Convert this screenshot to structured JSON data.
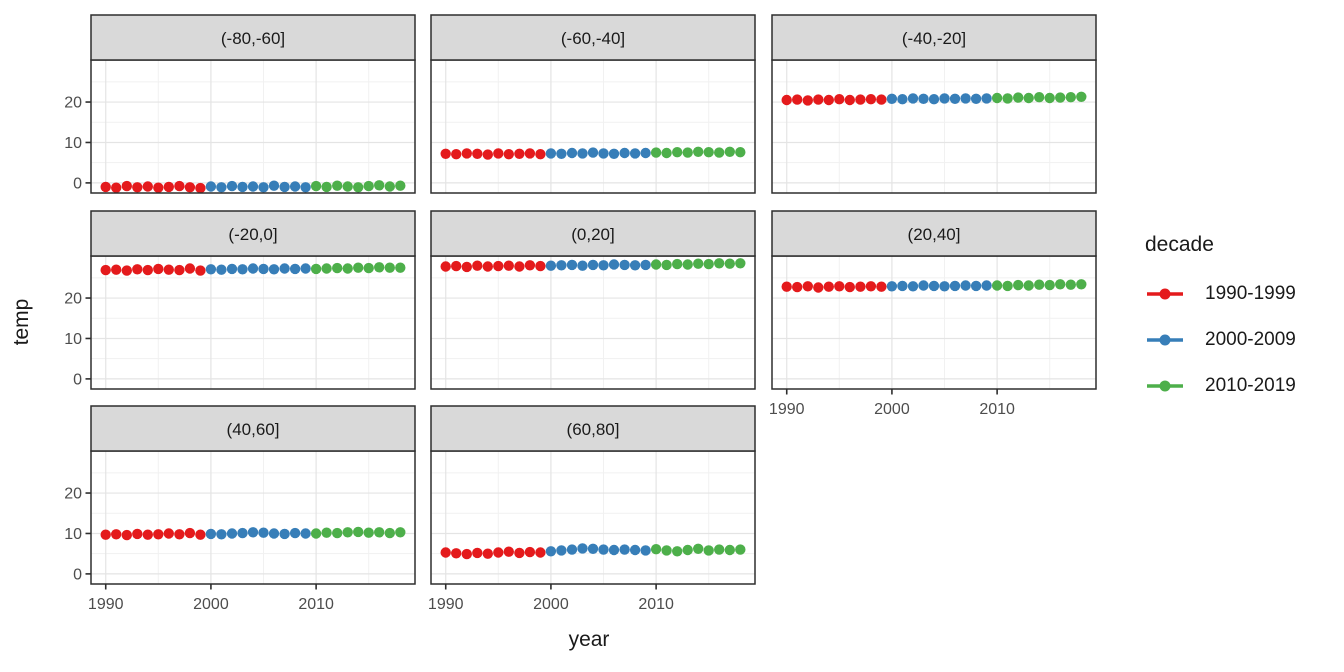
{
  "figure": {
    "x_axis_title": "year",
    "y_axis_title": "temp",
    "legend": {
      "title": "decade",
      "entries": [
        {
          "label": "1990-1999",
          "color": "#e41a1c"
        },
        {
          "label": "2000-2009",
          "color": "#377eb8"
        },
        {
          "label": "2010-2019",
          "color": "#4daf4a"
        }
      ]
    }
  },
  "colors": {
    "decade_1990_1999": "#e41a1c",
    "decade_2000_2009": "#377eb8",
    "decade_2010_2019": "#4daf4a",
    "strip_background": "#d9d9d9",
    "panel_background": "#ffffff",
    "panel_border": "#2e2e2e",
    "grid_major": "#e4e4e4",
    "grid_minor": "#f1f1f1",
    "axis_text": "#4d4d4d",
    "strip_text": "#1a1a1a"
  },
  "chart_data": {
    "type": "scatter",
    "title": "",
    "xlabel": "year",
    "ylabel": "temp",
    "facet_variable": "latitude band",
    "facet_layout": "facet_wrap, 3 columns, 8 panels",
    "legend_title": "decade",
    "legend_position": "right",
    "grid": "major and minor gridlines, light gray on white, dark panel border, gray strip headers",
    "x_ticks": [
      1990,
      2000,
      2010
    ],
    "x_minor_ticks": [
      1995,
      2005,
      2015
    ],
    "y_ticks": [
      0,
      10,
      20
    ],
    "y_minor_ticks": [
      5,
      15,
      25
    ],
    "x_range": [
      1988.6,
      2019.4
    ],
    "y_range": [
      -2.5,
      30.4
    ],
    "years": [
      1990,
      1991,
      1992,
      1993,
      1994,
      1995,
      1996,
      1997,
      1998,
      1999,
      2000,
      2001,
      2002,
      2003,
      2004,
      2005,
      2006,
      2007,
      2008,
      2009,
      2010,
      2011,
      2012,
      2013,
      2014,
      2015,
      2016,
      2017,
      2018
    ],
    "decades": [
      {
        "name": "1990-1999",
        "start": 1990,
        "end": 1999,
        "color": "#e41a1c"
      },
      {
        "name": "2000-2009",
        "start": 2000,
        "end": 2009,
        "color": "#377eb8"
      },
      {
        "name": "2010-2019",
        "start": 2010,
        "end": 2019,
        "color": "#4daf4a"
      }
    ],
    "facets": [
      {
        "label": "(-80,-60]",
        "temps": [
          -1.0,
          -1.2,
          -0.8,
          -1.1,
          -0.9,
          -1.2,
          -1.0,
          -0.8,
          -1.1,
          -1.3,
          -0.9,
          -1.1,
          -0.8,
          -1.0,
          -0.9,
          -1.1,
          -0.7,
          -1.0,
          -0.9,
          -1.1,
          -0.8,
          -1.0,
          -0.7,
          -0.9,
          -1.1,
          -0.8,
          -0.6,
          -0.9,
          -0.7
        ]
      },
      {
        "label": "(-60,-40]",
        "temps": [
          7.2,
          7.1,
          7.3,
          7.2,
          7.0,
          7.3,
          7.1,
          7.2,
          7.3,
          7.1,
          7.3,
          7.2,
          7.4,
          7.3,
          7.5,
          7.3,
          7.2,
          7.4,
          7.3,
          7.4,
          7.5,
          7.4,
          7.6,
          7.5,
          7.7,
          7.6,
          7.5,
          7.7,
          7.6
        ]
      },
      {
        "label": "(-40,-20]",
        "temps": [
          20.5,
          20.6,
          20.4,
          20.6,
          20.5,
          20.7,
          20.5,
          20.6,
          20.7,
          20.6,
          20.8,
          20.7,
          20.9,
          20.8,
          20.7,
          20.9,
          20.8,
          20.9,
          20.8,
          20.9,
          21.0,
          20.9,
          21.1,
          21.0,
          21.2,
          21.0,
          21.1,
          21.2,
          21.3
        ]
      },
      {
        "label": "(-20,0]",
        "temps": [
          26.9,
          27.0,
          26.8,
          27.1,
          26.9,
          27.2,
          27.0,
          26.9,
          27.3,
          26.8,
          27.1,
          27.0,
          27.2,
          27.1,
          27.3,
          27.2,
          27.1,
          27.3,
          27.2,
          27.3,
          27.2,
          27.3,
          27.4,
          27.3,
          27.5,
          27.4,
          27.6,
          27.5,
          27.5
        ]
      },
      {
        "label": "(0,20]",
        "temps": [
          27.8,
          27.9,
          27.7,
          28.0,
          27.8,
          27.9,
          28.0,
          27.8,
          28.1,
          27.9,
          28.0,
          28.1,
          28.2,
          28.0,
          28.2,
          28.1,
          28.3,
          28.2,
          28.1,
          28.2,
          28.3,
          28.2,
          28.4,
          28.3,
          28.5,
          28.4,
          28.6,
          28.5,
          28.6
        ]
      },
      {
        "label": "(20,40]",
        "temps": [
          22.8,
          22.7,
          22.9,
          22.6,
          22.8,
          22.9,
          22.7,
          22.8,
          22.9,
          22.8,
          22.9,
          23.0,
          22.9,
          23.1,
          23.0,
          22.9,
          23.0,
          23.1,
          23.0,
          23.1,
          23.1,
          23.0,
          23.2,
          23.1,
          23.3,
          23.2,
          23.4,
          23.3,
          23.4
        ]
      },
      {
        "label": "(40,60]",
        "temps": [
          9.7,
          9.8,
          9.6,
          9.9,
          9.7,
          9.8,
          10.0,
          9.8,
          10.1,
          9.7,
          9.9,
          9.8,
          10.0,
          10.1,
          10.3,
          10.2,
          10.0,
          9.9,
          10.1,
          10.0,
          10.0,
          10.2,
          10.1,
          10.3,
          10.4,
          10.2,
          10.3,
          10.1,
          10.3
        ]
      },
      {
        "label": "(60,80]",
        "temps": [
          5.3,
          5.1,
          4.9,
          5.2,
          5.0,
          5.3,
          5.5,
          5.2,
          5.4,
          5.3,
          5.6,
          5.8,
          6.0,
          6.3,
          6.2,
          6.0,
          5.9,
          6.0,
          5.9,
          5.8,
          6.1,
          5.8,
          5.6,
          5.9,
          6.2,
          5.8,
          6.0,
          5.9,
          6.0
        ]
      }
    ]
  }
}
